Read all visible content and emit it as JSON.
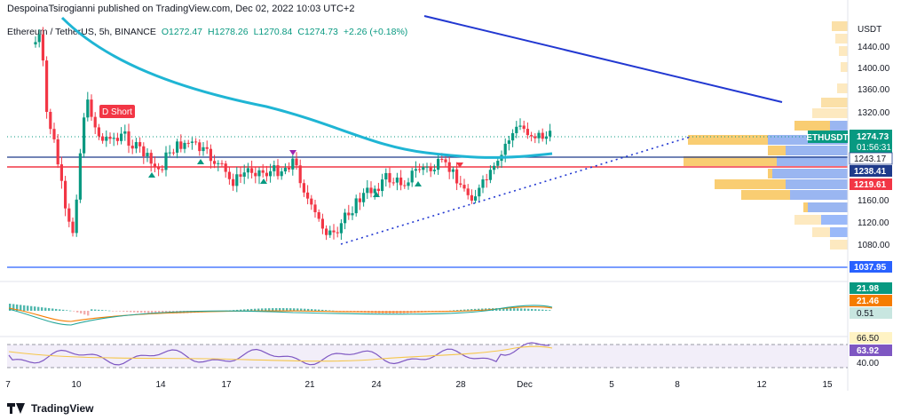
{
  "header": {
    "publisher": "DespoinaTsirogianni published on TradingView.com, Dec 02, 2022 10:03 UTC+2"
  },
  "legend": {
    "symbol": "Ethereum / TetherUS, 5h, BINANCE",
    "open": "O1272.47",
    "high": "H1278.26",
    "low": "L1270.84",
    "close": "C1274.73",
    "change": "+2.26 (+0.18%)"
  },
  "currency": "USDT",
  "price_axis": {
    "ticks": [
      "1440.00",
      "1400.00",
      "1360.00",
      "1320.00",
      "1160.00",
      "1120.00",
      "1080.00"
    ],
    "labels": {
      "symbol_tag": "ETHUSDT",
      "last": "1274.73",
      "countdown": "01:56:31",
      "l1": "1243.17",
      "l2": "1238.41",
      "l3": "1219.61",
      "l4": "1037.95"
    }
  },
  "signal_label": "D Short",
  "macd": {
    "v1": "21.98",
    "v2": "21.46",
    "v3": "0.51"
  },
  "rsi": {
    "v1": "66.50",
    "v2": "63.92",
    "level": "40.00"
  },
  "time_axis": [
    "7",
    "10",
    "14",
    "17",
    "21",
    "24",
    "28",
    "Dec",
    "5",
    "8",
    "12",
    "15"
  ],
  "footer": {
    "brand": "TradingView"
  },
  "colors": {
    "up": "#089981",
    "down": "#f23645",
    "ma": "#1fb5d4",
    "trend": "#2238d1",
    "blue_line": "#2962ff",
    "red_line": "#f23645"
  }
}
